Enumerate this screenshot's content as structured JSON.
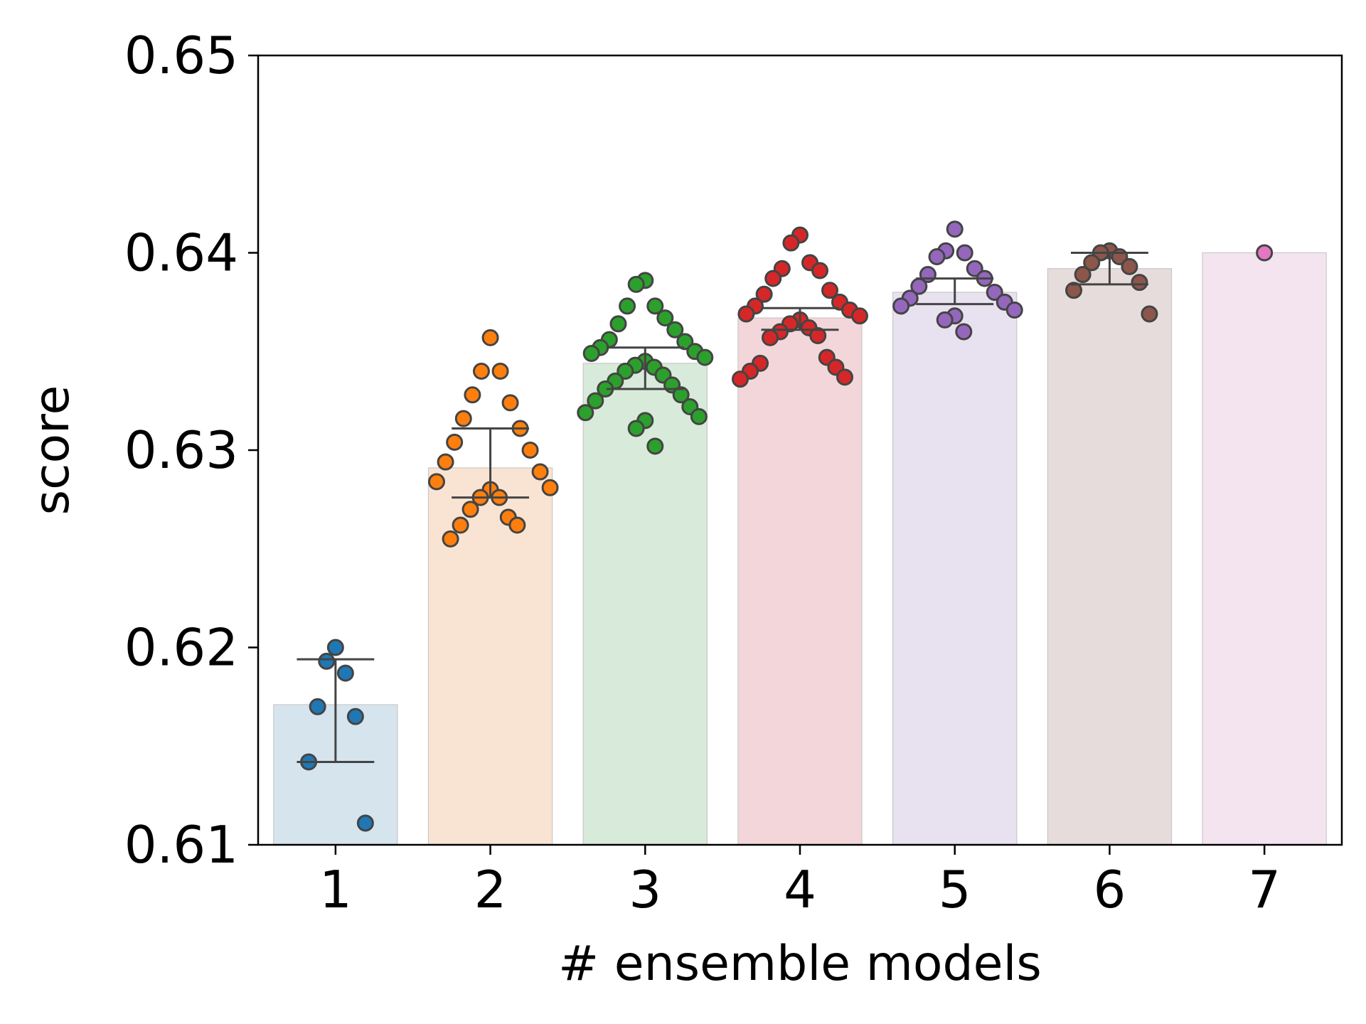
{
  "chart_data": {
    "type": "bar",
    "xlabel": "# ensemble models",
    "ylabel": "score",
    "ylim": [
      0.61,
      0.65
    ],
    "yticks": [
      "0.61",
      "0.62",
      "0.63",
      "0.64",
      "0.65"
    ],
    "categories": [
      "1",
      "2",
      "3",
      "4",
      "5",
      "6",
      "7"
    ],
    "grid": false,
    "bars": [
      {
        "category": "1",
        "mean": 0.6171,
        "ci": [
          0.6142,
          0.6194
        ],
        "color": "#1f77b4",
        "bar_color": "#d6e4ee"
      },
      {
        "category": "2",
        "mean": 0.6291,
        "ci": [
          0.6276,
          0.6311
        ],
        "color": "#ff7f0e",
        "bar_color": "#f9e4d3"
      },
      {
        "category": "3",
        "mean": 0.6344,
        "ci": [
          0.6331,
          0.6352
        ],
        "color": "#2ca02c",
        "bar_color": "#d8eada"
      },
      {
        "category": "4",
        "mean": 0.6367,
        "ci": [
          0.6361,
          0.6372
        ],
        "color": "#d62728",
        "bar_color": "#f3d6d9"
      },
      {
        "category": "5",
        "mean": 0.638,
        "ci": [
          0.6374,
          0.6387
        ],
        "color": "#9467bd",
        "bar_color": "#e8e2f0"
      },
      {
        "category": "6",
        "mean": 0.6392,
        "ci": [
          0.6384,
          0.64
        ],
        "color": "#8c564b",
        "bar_color": "#e6dcdb"
      },
      {
        "category": "7",
        "mean": 0.64,
        "ci": null,
        "color": "#e377c2",
        "bar_color": "#f4e4f0"
      }
    ],
    "points": [
      [
        0.62,
        0.6193,
        0.6187,
        0.617,
        0.6165,
        0.6142,
        0.6111
      ],
      [
        0.6357,
        0.634,
        0.634,
        0.6328,
        0.6324,
        0.6316,
        0.6311,
        0.6304,
        0.63,
        0.6294,
        0.6289,
        0.6284,
        0.6281,
        0.628,
        0.6276,
        0.6276,
        0.627,
        0.6266,
        0.6262,
        0.6262,
        0.6255
      ],
      [
        0.6386,
        0.6384,
        0.6373,
        0.6373,
        0.6367,
        0.6364,
        0.6361,
        0.6356,
        0.6355,
        0.6352,
        0.635,
        0.6349,
        0.6347,
        0.6345,
        0.6343,
        0.6342,
        0.634,
        0.6338,
        0.6335,
        0.6333,
        0.6331,
        0.6328,
        0.6325,
        0.6322,
        0.6319,
        0.6317,
        0.6315,
        0.6311,
        0.6302
      ],
      [
        0.6409,
        0.6405,
        0.6395,
        0.6392,
        0.6391,
        0.6387,
        0.6381,
        0.6379,
        0.6375,
        0.6373,
        0.6371,
        0.6369,
        0.6368,
        0.6366,
        0.6364,
        0.6362,
        0.636,
        0.6358,
        0.6357,
        0.6347,
        0.6344,
        0.6342,
        0.634,
        0.6337,
        0.6336
      ],
      [
        0.6412,
        0.6401,
        0.64,
        0.6398,
        0.6392,
        0.6389,
        0.6387,
        0.6383,
        0.638,
        0.6377,
        0.6375,
        0.6373,
        0.6371,
        0.6368,
        0.6366,
        0.636
      ],
      [
        0.6401,
        0.64,
        0.6398,
        0.6395,
        0.6393,
        0.6389,
        0.6385,
        0.6381,
        0.6369
      ],
      [
        0.64
      ]
    ]
  }
}
